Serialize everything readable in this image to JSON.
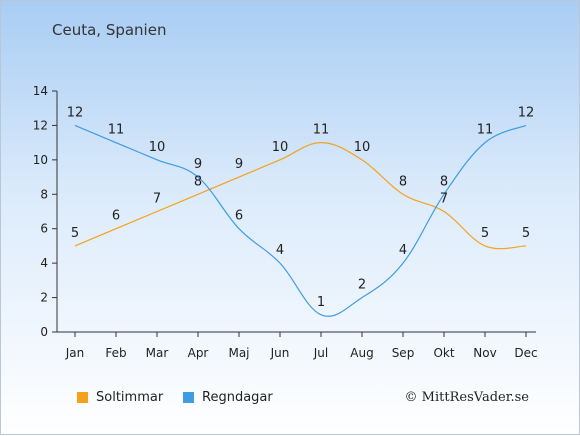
{
  "title": "Ceuta, Spanien",
  "credit": "© MittResVader.se",
  "chart_data": {
    "type": "line",
    "categories": [
      "Jan",
      "Feb",
      "Mar",
      "Apr",
      "Maj",
      "Jun",
      "Jul",
      "Aug",
      "Sep",
      "Okt",
      "Nov",
      "Dec"
    ],
    "ylim": [
      0,
      14
    ],
    "yticks": [
      0,
      2,
      4,
      6,
      8,
      10,
      12,
      14
    ],
    "grid": false,
    "legend_position": "bottom-left",
    "series": [
      {
        "name": "Soltimmar",
        "color": "#f5a11c",
        "values": [
          5,
          6,
          7,
          8,
          9,
          10,
          11,
          10,
          8,
          7,
          5,
          5
        ]
      },
      {
        "name": "Regndagar",
        "color": "#3f9be4",
        "values": [
          12,
          11,
          10,
          9,
          6,
          4,
          1,
          2,
          4,
          8,
          11,
          12
        ]
      }
    ]
  }
}
